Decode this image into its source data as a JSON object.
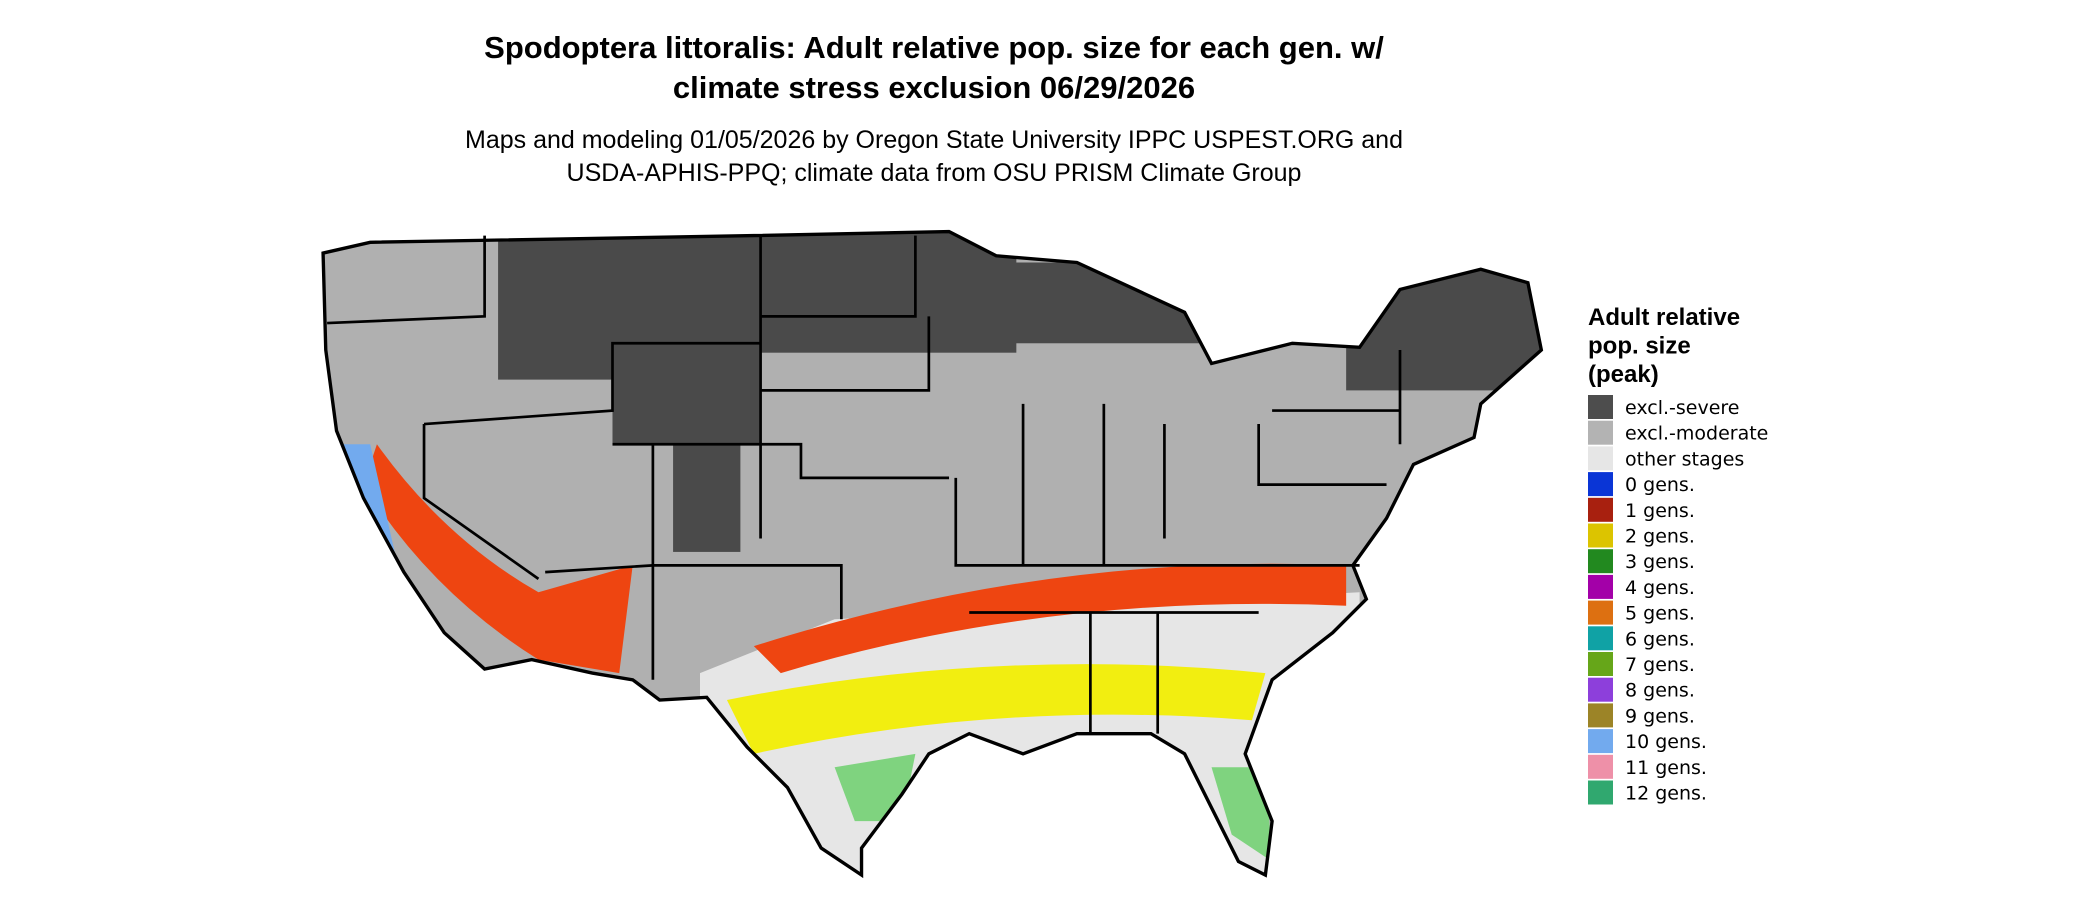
{
  "title_lines": [
    "Spodoptera littoralis: Adult relative pop. size for each gen. w/",
    "climate stress exclusion 06/29/2026"
  ],
  "subtitle_lines": [
    "Maps and modeling 01/05/2026 by Oregon State University IPPC USPEST.ORG and",
    "USDA-APHIS-PPQ; climate data from OSU PRISM Climate Group"
  ],
  "legend": {
    "title_lines": [
      "Adult relative",
      "pop. size",
      "(peak)"
    ],
    "items": [
      {
        "label": "excl.-severe",
        "color": "#4d4d4d"
      },
      {
        "label": "excl.-moderate",
        "color": "#b3b3b3"
      },
      {
        "label": "other stages",
        "color": "#e6e6e6"
      },
      {
        "label": "0 gens.",
        "color": "#0a35d6"
      },
      {
        "label": "1 gens.",
        "color": "#a8200f"
      },
      {
        "label": "2 gens.",
        "color": "#dcc400"
      },
      {
        "label": "3 gens.",
        "color": "#22891f"
      },
      {
        "label": "4 gens.",
        "color": "#a300a8"
      },
      {
        "label": "5 gens.",
        "color": "#dd7011"
      },
      {
        "label": "6 gens.",
        "color": "#10a2a5"
      },
      {
        "label": "7 gens.",
        "color": "#66a619"
      },
      {
        "label": "8 gens.",
        "color": "#8d3fdb"
      },
      {
        "label": "9 gens.",
        "color": "#9c8427"
      },
      {
        "label": "10 gens.",
        "color": "#72aaee"
      },
      {
        "label": "11 gens.",
        "color": "#ee90a8"
      },
      {
        "label": "12 gens.",
        "color": "#30a86f"
      }
    ]
  }
}
